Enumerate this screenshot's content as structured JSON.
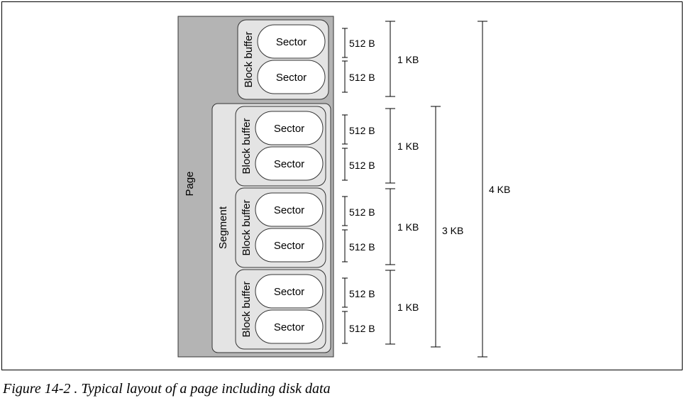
{
  "page_label": "Page",
  "segment_label": "Segment",
  "block_buffer_label": "Block buffer",
  "sector_label": "Sector",
  "sector_size": "512 B",
  "block_size": "1 KB",
  "segment_size": "3 KB",
  "page_size": "4 KB",
  "caption": "Figure 14-2 . Typical layout of a page including disk data"
}
